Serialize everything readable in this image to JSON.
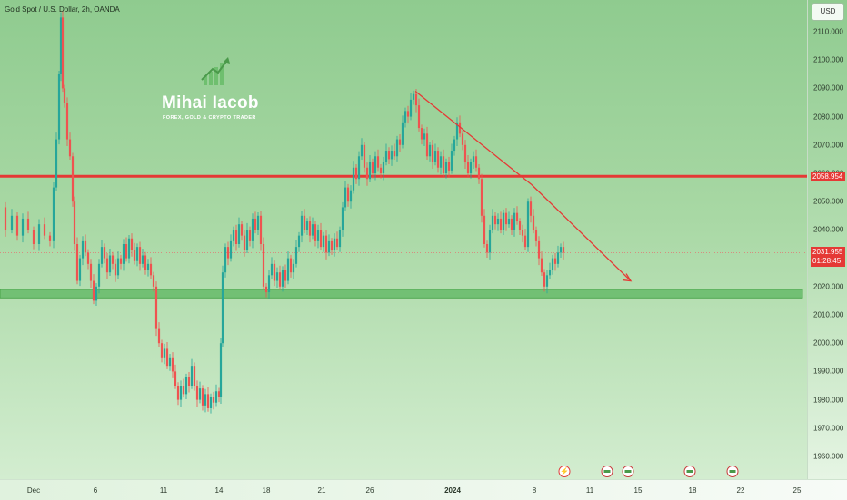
{
  "chart_data": {
    "type": "candlestick",
    "title": "Gold Spot / U.S. Dollar, 2h, OANDA",
    "currency_button": "USD",
    "y_ticks": [
      "2110.000",
      "2100.000",
      "2090.000",
      "2080.000",
      "2070.000",
      "2060.000",
      "2050.000",
      "2040.000",
      "2030.000",
      "2020.000",
      "2010.000",
      "2000.000",
      "1990.000",
      "1980.000",
      "1970.000",
      "1960.000"
    ],
    "x_ticks": [
      "Dec",
      "6",
      "11",
      "14",
      "18",
      "21",
      "26",
      "2024",
      "8",
      "11",
      "15",
      "18",
      "22",
      "25"
    ],
    "ylim": [
      1956,
      2120
    ],
    "price_path": [
      [
        0,
        2048
      ],
      [
        7,
        2040
      ],
      [
        14,
        2045
      ],
      [
        20,
        2038
      ],
      [
        26,
        2044
      ],
      [
        32,
        2040
      ],
      [
        38,
        2035
      ],
      [
        44,
        2042
      ],
      [
        50,
        2038
      ],
      [
        56,
        2036
      ],
      [
        60,
        2055
      ],
      [
        63,
        2072
      ],
      [
        66,
        2095
      ],
      [
        68,
        2115
      ],
      [
        70,
        2090
      ],
      [
        72,
        2085
      ],
      [
        75,
        2072
      ],
      [
        78,
        2066
      ],
      [
        81,
        2050
      ],
      [
        83,
        2035
      ],
      [
        86,
        2022
      ],
      [
        89,
        2030
      ],
      [
        92,
        2036
      ],
      [
        95,
        2032
      ],
      [
        98,
        2028
      ],
      [
        101,
        2022
      ],
      [
        104,
        2015
      ],
      [
        107,
        2020
      ],
      [
        110,
        2028
      ],
      [
        113,
        2034
      ],
      [
        116,
        2030
      ],
      [
        119,
        2025
      ],
      [
        122,
        2031
      ],
      [
        125,
        2028
      ],
      [
        128,
        2024
      ],
      [
        131,
        2030
      ],
      [
        134,
        2028
      ],
      [
        137,
        2035
      ],
      [
        140,
        2030
      ],
      [
        143,
        2037
      ],
      [
        146,
        2033
      ],
      [
        149,
        2029
      ],
      [
        152,
        2034
      ],
      [
        155,
        2028
      ],
      [
        158,
        2031
      ],
      [
        161,
        2026
      ],
      [
        164,
        2028
      ],
      [
        167,
        2024
      ],
      [
        170,
        2020
      ],
      [
        173,
        2005
      ],
      [
        176,
        2000
      ],
      [
        179,
        1995
      ],
      [
        182,
        1998
      ],
      [
        185,
        1992
      ],
      [
        188,
        1995
      ],
      [
        191,
        1990
      ],
      [
        194,
        1985
      ],
      [
        197,
        1980
      ],
      [
        200,
        1985
      ],
      [
        203,
        1982
      ],
      [
        206,
        1988
      ],
      [
        209,
        1985
      ],
      [
        212,
        1992
      ],
      [
        215,
        1985
      ],
      [
        218,
        1980
      ],
      [
        221,
        1984
      ],
      [
        224,
        1978
      ],
      [
        227,
        1982
      ],
      [
        230,
        1977
      ],
      [
        233,
        1981
      ],
      [
        236,
        1979
      ],
      [
        239,
        1983
      ],
      [
        242,
        1981
      ],
      [
        244,
        2000
      ],
      [
        246,
        2025
      ],
      [
        249,
        2034
      ],
      [
        252,
        2030
      ],
      [
        255,
        2036
      ],
      [
        258,
        2040
      ],
      [
        261,
        2035
      ],
      [
        264,
        2042
      ],
      [
        267,
        2038
      ],
      [
        270,
        2033
      ],
      [
        273,
        2040
      ],
      [
        276,
        2036
      ],
      [
        279,
        2044
      ],
      [
        282,
        2040
      ],
      [
        285,
        2045
      ],
      [
        288,
        2035
      ],
      [
        291,
        2020
      ],
      [
        294,
        2018
      ],
      [
        297,
        2024
      ],
      [
        300,
        2028
      ],
      [
        303,
        2022
      ],
      [
        306,
        2025
      ],
      [
        309,
        2020
      ],
      [
        312,
        2026
      ],
      [
        315,
        2022
      ],
      [
        318,
        2030
      ],
      [
        321,
        2025
      ],
      [
        324,
        2028
      ],
      [
        327,
        2034
      ],
      [
        330,
        2038
      ],
      [
        333,
        2045
      ],
      [
        336,
        2040
      ],
      [
        339,
        2043
      ],
      [
        342,
        2038
      ],
      [
        345,
        2042
      ],
      [
        348,
        2036
      ],
      [
        351,
        2040
      ],
      [
        354,
        2034
      ],
      [
        357,
        2038
      ],
      [
        360,
        2032
      ],
      [
        363,
        2036
      ],
      [
        366,
        2033
      ],
      [
        369,
        2037
      ],
      [
        372,
        2034
      ],
      [
        375,
        2040
      ],
      [
        378,
        2048
      ],
      [
        381,
        2055
      ],
      [
        384,
        2050
      ],
      [
        387,
        2054
      ],
      [
        390,
        2062
      ],
      [
        393,
        2058
      ],
      [
        396,
        2066
      ],
      [
        399,
        2070
      ],
      [
        402,
        2062
      ],
      [
        405,
        2058
      ],
      [
        408,
        2064
      ],
      [
        411,
        2060
      ],
      [
        414,
        2066
      ],
      [
        417,
        2062
      ],
      [
        420,
        2060
      ],
      [
        423,
        2064
      ],
      [
        426,
        2068
      ],
      [
        429,
        2065
      ],
      [
        432,
        2068
      ],
      [
        435,
        2066
      ],
      [
        438,
        2072
      ],
      [
        441,
        2070
      ],
      [
        444,
        2078
      ],
      [
        447,
        2082
      ],
      [
        450,
        2080
      ],
      [
        453,
        2086
      ],
      [
        456,
        2088
      ],
      [
        459,
        2084
      ],
      [
        462,
        2076
      ],
      [
        465,
        2072
      ],
      [
        468,
        2074
      ],
      [
        471,
        2066
      ],
      [
        474,
        2070
      ],
      [
        477,
        2064
      ],
      [
        480,
        2068
      ],
      [
        483,
        2062
      ],
      [
        486,
        2066
      ],
      [
        489,
        2060
      ],
      [
        492,
        2064
      ],
      [
        495,
        2061
      ],
      [
        498,
        2068
      ],
      [
        501,
        2072
      ],
      [
        504,
        2078
      ],
      [
        507,
        2074
      ],
      [
        510,
        2070
      ],
      [
        513,
        2064
      ],
      [
        516,
        2060
      ],
      [
        519,
        2064
      ],
      [
        522,
        2066
      ],
      [
        525,
        2062
      ],
      [
        528,
        2058
      ],
      [
        531,
        2045
      ],
      [
        534,
        2035
      ],
      [
        537,
        2032
      ],
      [
        540,
        2040
      ],
      [
        543,
        2045
      ],
      [
        546,
        2042
      ],
      [
        549,
        2044
      ],
      [
        552,
        2040
      ],
      [
        555,
        2046
      ],
      [
        558,
        2042
      ],
      [
        561,
        2044
      ],
      [
        564,
        2040
      ],
      [
        567,
        2046
      ],
      [
        570,
        2043
      ],
      [
        573,
        2040
      ],
      [
        576,
        2038
      ],
      [
        579,
        2034
      ],
      [
        582,
        2050
      ],
      [
        585,
        2045
      ],
      [
        588,
        2040
      ],
      [
        591,
        2036
      ],
      [
        594,
        2030
      ],
      [
        597,
        2025
      ],
      [
        600,
        2020
      ],
      [
        603,
        2024
      ],
      [
        606,
        2026
      ],
      [
        609,
        2030
      ],
      [
        612,
        2028
      ],
      [
        615,
        2032
      ],
      [
        618,
        2034
      ],
      [
        621,
        2032
      ]
    ],
    "resistance_level": 2058.954,
    "support_zone": [
      2016,
      2019
    ],
    "trendline": [
      [
        457,
        2089
      ],
      [
        585,
        2056
      ]
    ],
    "projection_arrow": [
      [
        585,
        2056
      ],
      [
        694,
        2022
      ]
    ],
    "current_price_label": "2031.955",
    "countdown_label": "01:28:45",
    "resistance_label": "2058.954",
    "colors": {
      "up": "#26a69a",
      "down": "#ef5350",
      "resistance": "#e53935",
      "support": "#66bb6a",
      "trend": "#e53935"
    }
  },
  "watermark": {
    "name": "Mihai Iacob",
    "tagline": "FOREX, GOLD & CRYPTO TRADER"
  },
  "event_icons": [
    "lightning-icon",
    "calendar-flag-icon",
    "calendar-flag-icon",
    "calendar-flag-icon",
    "calendar-flag-icon"
  ]
}
